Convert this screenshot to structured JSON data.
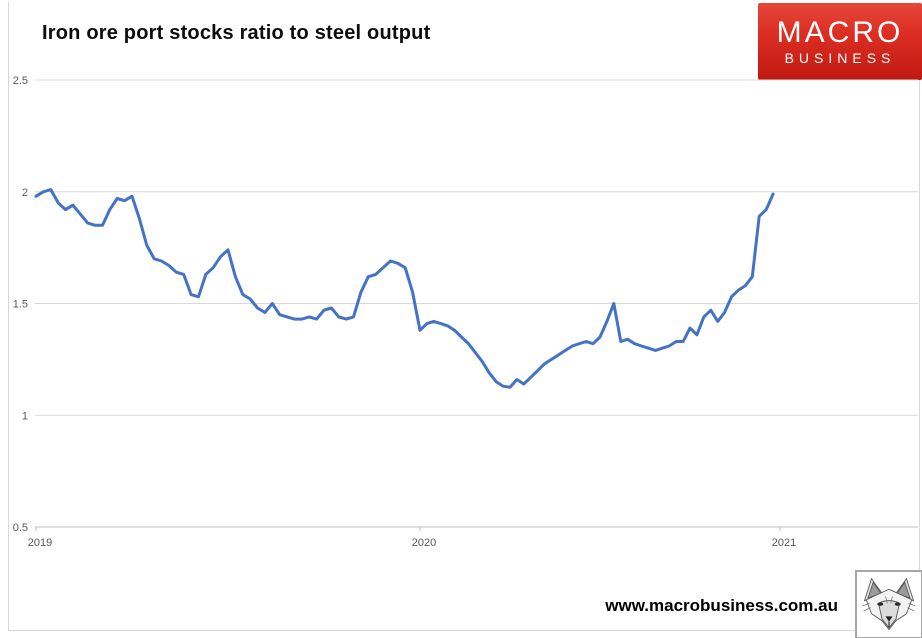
{
  "page": {
    "title": "Iron ore port stocks ratio to steel output",
    "website": "www.macrobusiness.com.au"
  },
  "logo": {
    "line1": "MACRO",
    "line2": "BUSINESS",
    "bg_top_color": "#e6473b",
    "bg_bottom_color": "#c01911",
    "text_color": "#ffffff"
  },
  "chart_data": {
    "type": "line",
    "title": "Iron ore port stocks ratio to steel output",
    "xlabel": "",
    "ylabel": "",
    "x_unit": "weekly",
    "x_start_year": 2019,
    "points_per_year": 52,
    "x_ticks": [
      2019,
      2020,
      2021
    ],
    "y_ticks": [
      2.5,
      2,
      1.5,
      1,
      0.5
    ],
    "ylim": [
      0.5,
      2.5
    ],
    "grid": "horizontal",
    "line_color": "#4472c4",
    "axis_label_color": "#595959",
    "gridline_color": "#d9d9d9",
    "axis_line_color": "#bfbfbf",
    "series": [
      {
        "name": "Iron ore port stocks ratio to steel output",
        "color": "#4472c4",
        "values": [
          1.98,
          2.0,
          2.01,
          1.95,
          1.92,
          1.94,
          1.9,
          1.86,
          1.85,
          1.85,
          1.92,
          1.97,
          1.96,
          1.98,
          1.88,
          1.76,
          1.7,
          1.69,
          1.67,
          1.64,
          1.63,
          1.54,
          1.53,
          1.63,
          1.66,
          1.71,
          1.74,
          1.62,
          1.54,
          1.52,
          1.48,
          1.46,
          1.5,
          1.45,
          1.44,
          1.43,
          1.43,
          1.44,
          1.43,
          1.47,
          1.48,
          1.44,
          1.43,
          1.44,
          1.55,
          1.62,
          1.63,
          1.66,
          1.69,
          1.68,
          1.66,
          1.55,
          1.38,
          1.41,
          1.42,
          1.41,
          1.4,
          1.38,
          1.35,
          1.32,
          1.28,
          1.24,
          1.19,
          1.15,
          1.13,
          1.125,
          1.16,
          1.14,
          1.17,
          1.2,
          1.23,
          1.25,
          1.27,
          1.29,
          1.31,
          1.32,
          1.33,
          1.32,
          1.35,
          1.42,
          1.5,
          1.33,
          1.34,
          1.32,
          1.31,
          1.3,
          1.29,
          1.3,
          1.31,
          1.33,
          1.33,
          1.39,
          1.36,
          1.44,
          1.47,
          1.42,
          1.46,
          1.53,
          1.56,
          1.58,
          1.62,
          1.89,
          1.92,
          1.99
        ]
      }
    ]
  }
}
